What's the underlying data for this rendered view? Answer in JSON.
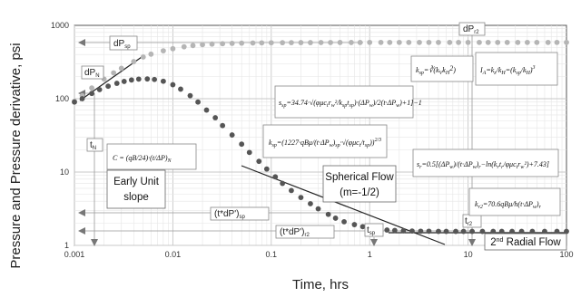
{
  "chart_data": {
    "type": "scatter",
    "x_scale": "log",
    "y_scale": "log",
    "xlim": [
      0.001,
      100
    ],
    "ylim": [
      1,
      1000
    ],
    "xlabel": "Time, hrs",
    "ylabel": "Pressure and Pressure derivative, psi",
    "x_ticks": [
      "0.001",
      "0.01",
      "0.1",
      "1",
      "10",
      "100"
    ],
    "y_ticks": [
      "1",
      "10",
      "100",
      "1000"
    ],
    "grid": true,
    "series": [
      {
        "marker_color": "#b5b5b5",
        "x": [
          0.001,
          0.0012,
          0.0015,
          0.002,
          0.0025,
          0.003,
          0.004,
          0.005,
          0.006,
          0.008,
          0.01,
          0.013,
          0.016,
          0.02,
          0.025,
          0.032,
          0.04,
          0.05,
          0.065,
          0.08,
          0.1,
          0.13,
          0.16,
          0.2,
          0.25,
          0.32,
          0.4,
          0.5,
          0.65,
          0.8,
          1,
          1.3,
          1.6,
          2,
          2.5,
          3.2,
          4,
          5,
          6.5,
          8,
          10,
          13,
          16,
          20,
          25,
          32,
          40,
          50,
          65,
          80,
          100
        ],
        "y": [
          92,
          110,
          140,
          185,
          225,
          260,
          320,
          370,
          405,
          450,
          480,
          510,
          530,
          545,
          555,
          562,
          568,
          572,
          575,
          577,
          579,
          580,
          581,
          582,
          582,
          583,
          583,
          584,
          584,
          584,
          585,
          585,
          585,
          585,
          585,
          585,
          585,
          585,
          585,
          585,
          585,
          585,
          585,
          585,
          585,
          585,
          585,
          585,
          585,
          585,
          585
        ]
      },
      {
        "marker_color": "#555555",
        "x": [
          0.001,
          0.0012,
          0.0015,
          0.0018,
          0.0022,
          0.0027,
          0.0032,
          0.0038,
          0.0045,
          0.0055,
          0.0065,
          0.008,
          0.01,
          0.012,
          0.015,
          0.018,
          0.022,
          0.027,
          0.032,
          0.04,
          0.05,
          0.06,
          0.075,
          0.09,
          0.11,
          0.13,
          0.16,
          0.2,
          0.25,
          0.3,
          0.38,
          0.45,
          0.55,
          0.7,
          0.85,
          1,
          1.25,
          1.5,
          1.8,
          2.2,
          2.7,
          3.3,
          4,
          5,
          6,
          7.5,
          9,
          11,
          14,
          18,
          22,
          28,
          35,
          45,
          60,
          80,
          100
        ],
        "y": [
          90,
          100,
          118,
          133,
          148,
          162,
          172,
          180,
          185,
          186,
          183,
          173,
          155,
          135,
          110,
          90,
          70,
          55,
          43,
          32,
          24,
          18.5,
          14,
          11,
          8.6,
          7,
          5.6,
          4.5,
          3.7,
          3.15,
          2.65,
          2.35,
          2.1,
          1.92,
          1.8,
          1.72,
          1.66,
          1.62,
          1.6,
          1.58,
          1.57,
          1.56,
          1.56,
          1.55,
          1.55,
          1.55,
          1.55,
          1.55,
          1.55,
          1.55,
          1.55,
          1.55,
          1.55,
          1.55,
          1.55,
          1.55,
          1.55
        ]
      }
    ],
    "annotations": {
      "dPsp": "dP",
      "dPsp_sub": "sp",
      "dPr2": "dP",
      "dPr2_sub": "r2",
      "dPN": "dP",
      "dPN_sub": "N",
      "tN": "t",
      "tN_sub": "N",
      "tsp": "t",
      "tsp_sub": "sp",
      "tr2": "t",
      "tr2_sub": "r2",
      "tdPsp": "(t*dP')",
      "tdPsp_sub": "sp",
      "tdPr2": "(t*dP')",
      "tdPr2_sub": "r2",
      "early_unit_1": "Early Unit",
      "early_unit_2": "slope",
      "spherical_1": "Spherical Flow",
      "spherical_2": "(m=-1/2)",
      "radial": "Radial Flow",
      "radial_pre": "2",
      "radial_sup": "nd"
    }
  }
}
